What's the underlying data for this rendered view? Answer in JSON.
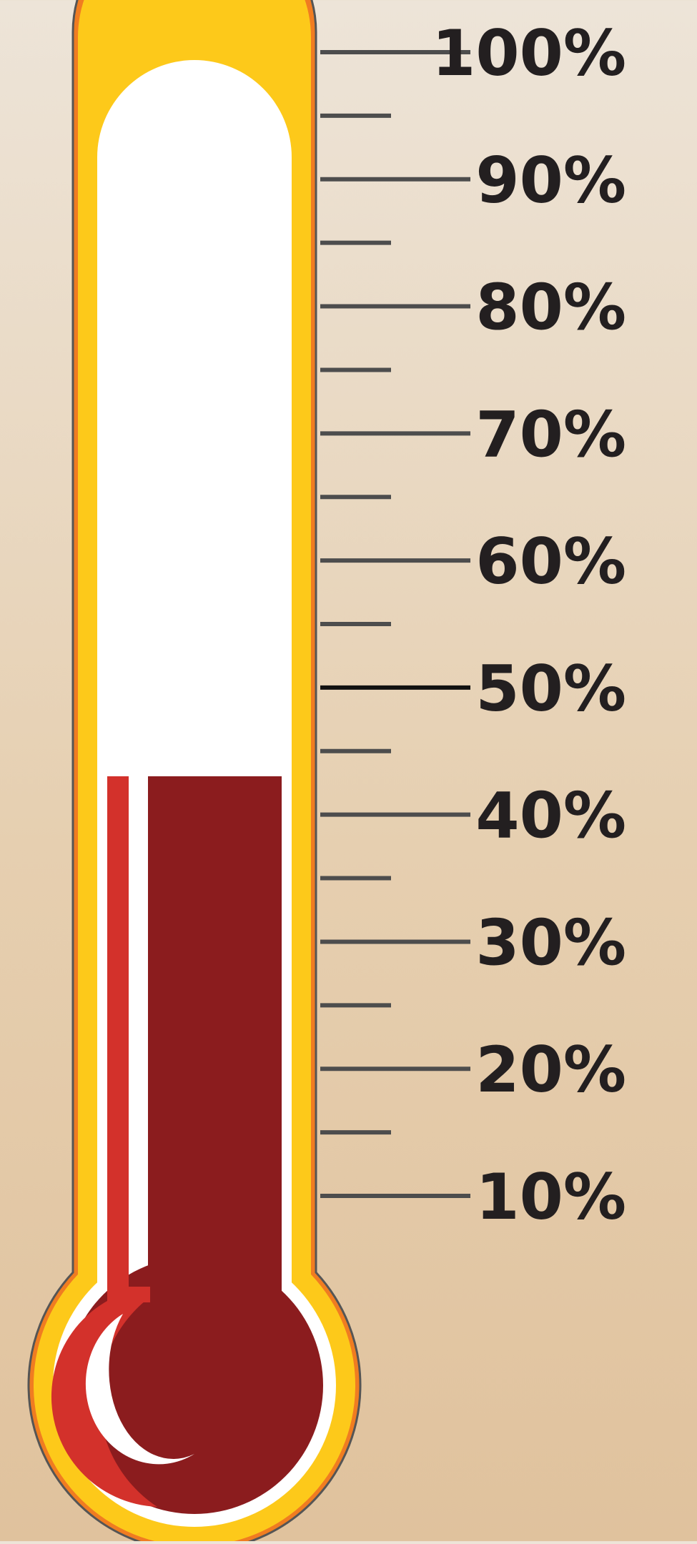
{
  "chart_data": {
    "type": "thermometer",
    "value_percent": 43,
    "scale_min": 0,
    "scale_max": 100,
    "major_ticks": [
      10,
      20,
      30,
      40,
      50,
      60,
      70,
      80,
      90,
      100
    ],
    "minor_ticks": [
      15,
      25,
      35,
      45,
      55,
      65,
      75,
      85,
      95
    ],
    "tick_labels": [
      "10%",
      "20%",
      "30%",
      "40%",
      "50%",
      "60%",
      "70%",
      "80%",
      "90%",
      "100%"
    ],
    "highlighted_tick": 50
  },
  "colors": {
    "background_top": "#ede4d8",
    "background_bottom": "#e0c29d",
    "outline": "#555555",
    "outer_rim": "#f07c21",
    "yellow_rim": "#fdc91a",
    "tube_white": "#ffffff",
    "mercury": "#8b1c1e",
    "mercury_highlight": "#d3312b",
    "tick": "#4d4d4d",
    "tick_highlight": "#111111",
    "label": "#231f20"
  }
}
